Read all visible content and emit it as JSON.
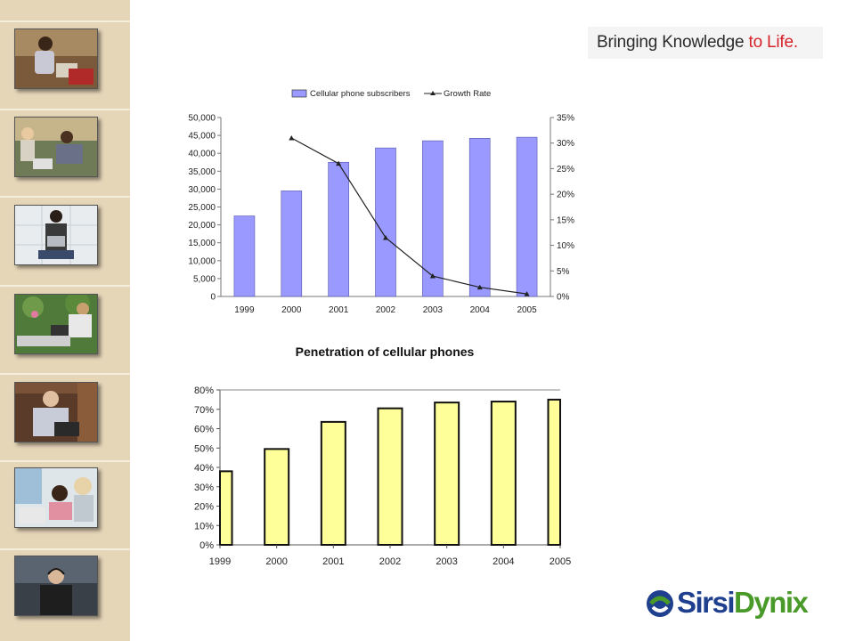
{
  "header": {
    "tagline_main": "Bringing Knowledge ",
    "tagline_accent": "to Life."
  },
  "logo": {
    "part1": "Sirsi",
    "part2": "Dynix"
  },
  "colors": {
    "sidebar": "#e6d6b8",
    "bar_blue": "#9999ff",
    "bar_yellow": "#ffff99",
    "accent_red": "#d6232a",
    "logo_blue": "#1f3f8f",
    "logo_green": "#4a9a2a"
  },
  "sidebar_icons": [
    "photo-child-reading-icon",
    "photo-family-laptop-icon",
    "photo-woman-laptop-icon",
    "photo-outdoor-laptop-icon",
    "photo-elderly-man-laptop-icon",
    "photo-children-computer-icon",
    "photo-headset-user-icon"
  ],
  "chart_data": [
    {
      "type": "bar",
      "title": "",
      "categories": [
        "1999",
        "2000",
        "2001",
        "2002",
        "2003",
        "2004",
        "2005"
      ],
      "series": [
        {
          "name": "Cellular phone subscribers",
          "kind": "bar",
          "axis": "left",
          "values": [
            22500,
            29500,
            37500,
            41500,
            43500,
            44200,
            44500
          ]
        },
        {
          "name": "Growth Rate",
          "kind": "line",
          "axis": "right",
          "values": [
            null,
            0.31,
            0.26,
            0.115,
            0.04,
            0.018,
            0.005
          ]
        }
      ],
      "yticks_left": [
        "0",
        "5,000",
        "10,000",
        "15,000",
        "20,000",
        "25,000",
        "30,000",
        "35,000",
        "40,000",
        "45,000",
        "50,000"
      ],
      "yticks_right": [
        "0%",
        "5%",
        "10%",
        "15%",
        "20%",
        "25%",
        "30%",
        "35%"
      ],
      "ylim_left": [
        0,
        50000
      ],
      "ylim_right": [
        0,
        0.35
      ],
      "legend": "top",
      "grid": false
    },
    {
      "type": "bar",
      "title": "Penetration of cellular phones",
      "categories": [
        "1999",
        "2000",
        "2001",
        "2002",
        "2003",
        "2004",
        "2005"
      ],
      "values": [
        0.38,
        0.495,
        0.635,
        0.705,
        0.735,
        0.74,
        0.75
      ],
      "yticks": [
        "0%",
        "10%",
        "20%",
        "30%",
        "40%",
        "50%",
        "60%",
        "70%",
        "80%"
      ],
      "ylim": [
        0,
        0.8
      ],
      "grid": false
    }
  ]
}
